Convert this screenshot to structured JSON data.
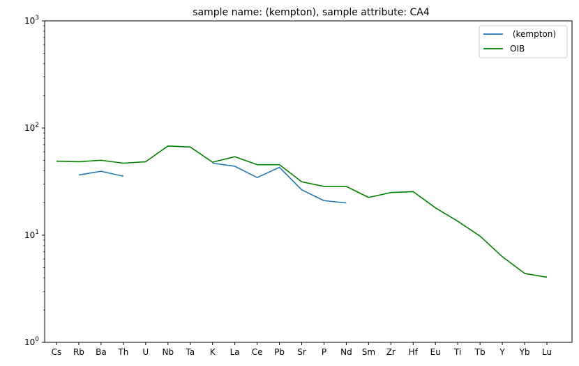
{
  "chart_data": {
    "type": "line",
    "title": "sample name:  (kempton), sample attribute: CA4",
    "xlabel": "",
    "ylabel": "",
    "yscale": "log",
    "ylim": [
      1,
      1000
    ],
    "y_tick_labels": [
      {
        "base": "10",
        "exp": "0"
      },
      {
        "base": "10",
        "exp": "1"
      },
      {
        "base": "10",
        "exp": "2"
      },
      {
        "base": "10",
        "exp": "3"
      }
    ],
    "categories": [
      "Cs",
      "Rb",
      "Ba",
      "Th",
      "U",
      "Nb",
      "Ta",
      "K",
      "La",
      "Ce",
      "Pb",
      "Sr",
      "P",
      "Nd",
      "Sm",
      "Zr",
      "Hf",
      "Eu",
      "Ti",
      "Tb",
      "Y",
      "Yb",
      "Lu"
    ],
    "grid": false,
    "legend_position": "top-right",
    "series": [
      {
        "name": " (kempton)",
        "color": "#1f77b4",
        "values": [
          null,
          36.5,
          39.5,
          35.5,
          null,
          null,
          null,
          47,
          44,
          34.5,
          43,
          26.5,
          21,
          20,
          null,
          null,
          null,
          null,
          null,
          null,
          null,
          null,
          null
        ]
      },
      {
        "name": "OIB",
        "color": "#008000",
        "values": [
          49,
          48.5,
          50,
          47,
          48.5,
          68,
          66.5,
          48,
          54,
          45.5,
          45.5,
          31.5,
          28.5,
          28.5,
          22.5,
          25,
          25.5,
          18,
          13.5,
          9.8,
          6.3,
          4.4,
          4.05
        ]
      }
    ]
  }
}
